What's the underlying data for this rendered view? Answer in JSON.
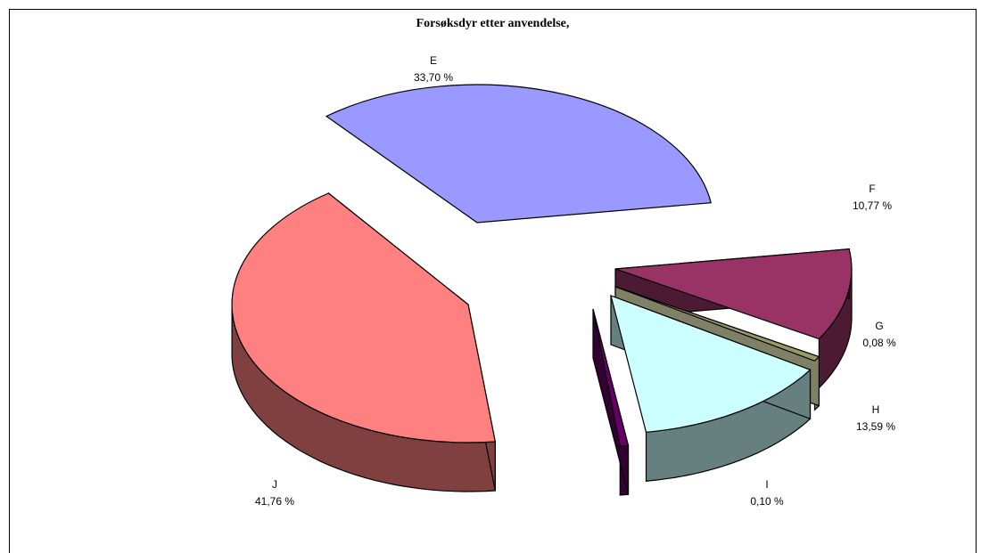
{
  "chart_data": {
    "type": "pie",
    "title": "Forsøksdyr etter anvendelse,",
    "categories": [
      "E",
      "F",
      "G",
      "H",
      "I",
      "J"
    ],
    "values": [
      33.7,
      10.77,
      0.08,
      13.59,
      0.1,
      41.76
    ],
    "value_labels": [
      "33,70 %",
      "10,77 %",
      "0,08 %",
      "13,59 %",
      "0,10 %",
      "41,76 %"
    ],
    "colors": {
      "E": {
        "top": "#9999ff",
        "side": "#4b4b80"
      },
      "F": {
        "top": "#993366",
        "side": "#4d1a33"
      },
      "G": {
        "top": "#999966",
        "side": "#808066"
      },
      "H": {
        "top": "#ccffff",
        "side": "#668080"
      },
      "I": {
        "top": "#660066",
        "side": "#330033"
      },
      "J": {
        "top": "#ff8080",
        "side": "#804040"
      }
    },
    "legend": "none",
    "style": "3d-exploded"
  }
}
